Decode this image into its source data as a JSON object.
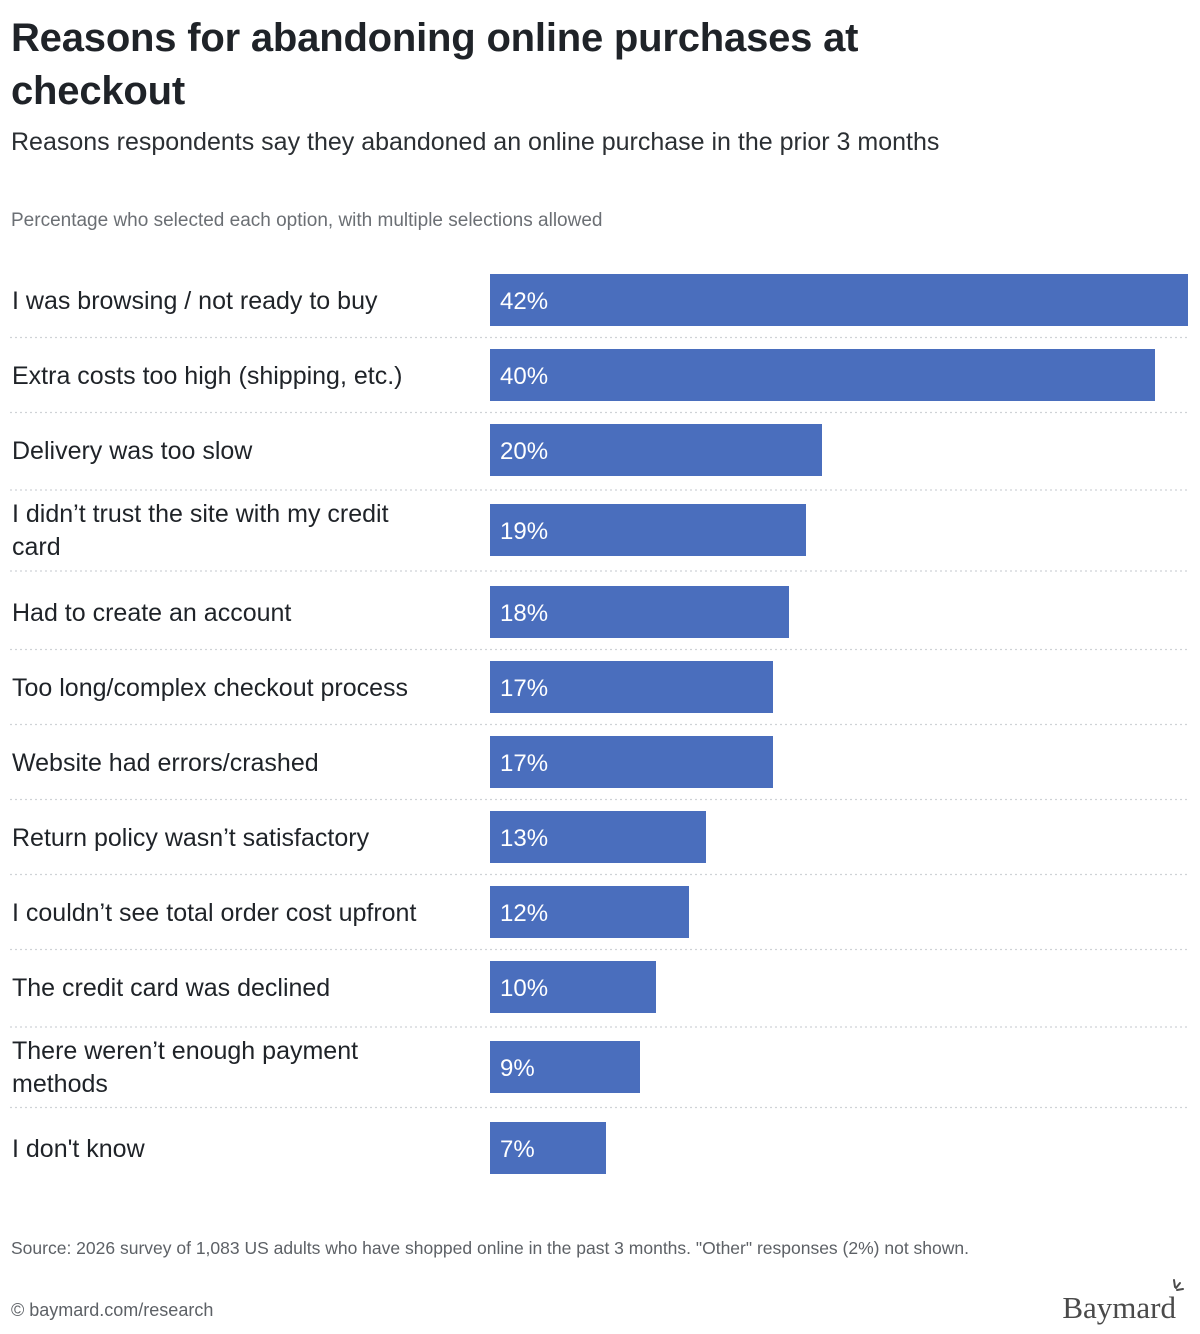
{
  "header": {
    "title": "Reasons for abandoning online purchases at checkout",
    "subtitle": "Reasons respondents say they abandoned an online purchase in the prior 3 months",
    "note": "Percentage who selected each option, with multiple selections allowed"
  },
  "footer": {
    "source": "Source: 2026 survey of 1,083 US adults who have shopped online in the past 3 months. \"Other\" responses (2%) not shown.",
    "copyright": "© baymard.com/research",
    "logo_text": "Baymard"
  },
  "colors": {
    "bar": "#4a6ebd",
    "separator": "#cfd2d6"
  },
  "chart_data": {
    "type": "bar",
    "orientation": "horizontal",
    "categories": [
      "I was browsing / not ready to buy",
      "Extra costs too high (shipping, etc.)",
      "Delivery was too slow",
      "I didn’t trust the site with my credit card",
      "Had to create an account",
      "Too long/complex checkout process",
      "Website had errors/crashed",
      "Return policy wasn’t satisfactory",
      "I couldn’t see total order cost upfront",
      "The credit card was declined",
      "There weren’t enough payment methods",
      "I don't know"
    ],
    "values": [
      42,
      40,
      20,
      19,
      18,
      17,
      17,
      13,
      12,
      10,
      9,
      7
    ],
    "value_labels": [
      "42%",
      "40%",
      "20%",
      "19%",
      "18%",
      "17%",
      "17%",
      "13%",
      "12%",
      "10%",
      "9%",
      "7%"
    ],
    "unit": "%",
    "xlim": [
      0,
      42
    ],
    "grid": false,
    "legend": "none"
  }
}
